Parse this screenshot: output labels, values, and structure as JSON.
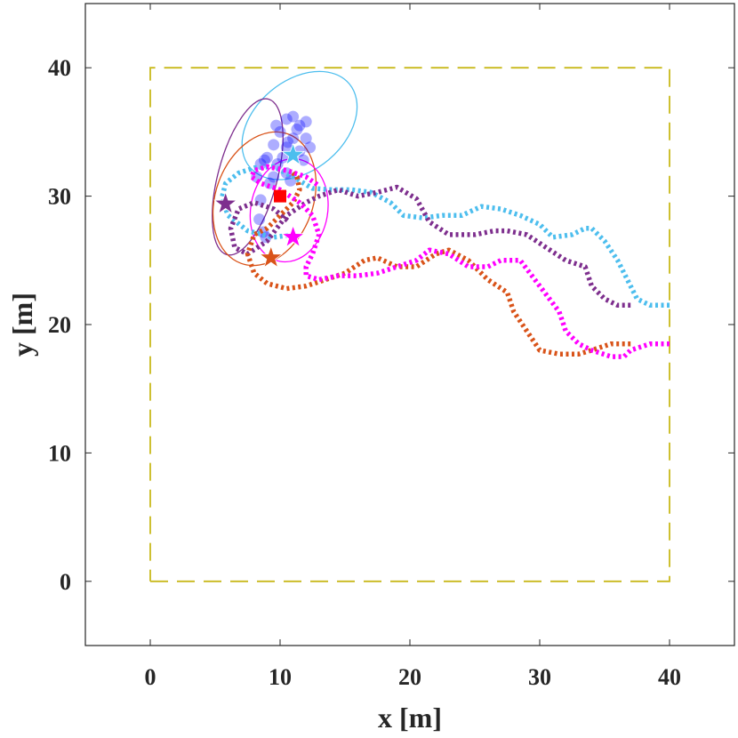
{
  "chart_data": {
    "type": "line",
    "title": "",
    "xlabel": "x [m]",
    "ylabel": "y [m]",
    "xlim": [
      -5,
      45
    ],
    "ylim": [
      -5,
      45
    ],
    "xticks": [
      0,
      10,
      20,
      30,
      40
    ],
    "yticks": [
      0,
      10,
      20,
      30,
      40
    ],
    "x_tick_labels": [
      "0",
      "10",
      "20",
      "30",
      "40"
    ],
    "y_tick_labels": [
      "0",
      "10",
      "20",
      "30",
      "40"
    ],
    "grid": false,
    "legend": "none",
    "boundary": {
      "x": [
        0,
        40,
        40,
        0,
        0
      ],
      "y": [
        0,
        0,
        40,
        40,
        0
      ],
      "color": "#c9b91b"
    },
    "target": {
      "x": 10,
      "y": 30,
      "color": "#ff0000"
    },
    "series": [
      {
        "color": "#4dbeee",
        "x": [
          40,
          38.5,
          37.5,
          37,
          36,
          35,
          34,
          33.5,
          32.5,
          31,
          30,
          28.5,
          27,
          25.5,
          24,
          22.5,
          21,
          19.5,
          18.5,
          17,
          15.5,
          14,
          12.5,
          11,
          9.5,
          8,
          6.8,
          5.8,
          5.5,
          6,
          7.5,
          9.5,
          11
        ],
        "y": [
          21.5,
          21.5,
          22,
          23,
          25,
          26.5,
          27.5,
          27.5,
          27,
          26.8,
          27.8,
          28.5,
          29,
          29.2,
          28.5,
          28.5,
          28.3,
          28.5,
          29.5,
          30.3,
          30.5,
          30.5,
          30.6,
          31.5,
          32.3,
          32.2,
          31.8,
          31,
          29.8,
          28.5,
          27.3,
          26.8,
          27
        ]
      },
      {
        "color": "#7e2f8e",
        "x": [
          37,
          36,
          35,
          34,
          33.5,
          32,
          30.5,
          29,
          27.5,
          26.5,
          25,
          23,
          21.5,
          20.5,
          19,
          17.5,
          16,
          14.5,
          13,
          12,
          10.5,
          9,
          7.5,
          6.5,
          6.2,
          6.8,
          8,
          9.5,
          10.7
        ],
        "y": [
          21.5,
          21.5,
          22,
          23,
          24.5,
          25,
          26,
          27,
          27.3,
          27.3,
          27,
          27,
          28,
          29.8,
          30.7,
          30.3,
          30,
          30.5,
          30,
          29.5,
          28.5,
          26.5,
          25.5,
          26,
          27.5,
          29,
          29.5,
          29,
          28
        ]
      },
      {
        "color": "#d95319",
        "x": [
          37,
          35.5,
          34,
          33,
          31.5,
          30,
          29,
          28,
          27.5,
          26,
          24.5,
          23,
          22,
          20.5,
          19,
          17.5,
          16.5,
          15,
          13.5,
          12,
          10.5,
          9,
          8,
          7.5,
          8,
          9,
          10,
          11,
          11.5,
          11.3,
          10.8
        ],
        "y": [
          18.5,
          18.5,
          18,
          17.7,
          17.7,
          18,
          19.5,
          21,
          22.5,
          23.5,
          25,
          25.8,
          25.5,
          24.5,
          24.5,
          25.2,
          25,
          24,
          23.5,
          23,
          22.8,
          23.2,
          24,
          25.5,
          27,
          27.5,
          28.5,
          29.5,
          30.5,
          31.5,
          32
        ]
      },
      {
        "color": "#ff00ff",
        "x": [
          40,
          38.5,
          37,
          36.5,
          35.5,
          34,
          33,
          32,
          31.5,
          30,
          28.5,
          27,
          26,
          24.5,
          23,
          21.5,
          20.5,
          19,
          17.5,
          16,
          14.5,
          13,
          12,
          12,
          12.5,
          13,
          12.5,
          11.5,
          10,
          8.5,
          7.8,
          8,
          9,
          10.5,
          12,
          13
        ],
        "y": [
          18.5,
          18.5,
          18,
          17.5,
          17.5,
          18,
          18.5,
          19.5,
          21,
          23,
          25,
          25,
          24.5,
          24.5,
          25.5,
          25.8,
          25,
          24.5,
          24,
          23.8,
          23.8,
          23.5,
          23.8,
          24.5,
          25.5,
          27,
          28.5,
          29.5,
          30.5,
          31,
          31.5,
          32,
          32.3,
          32,
          31.5,
          30.8
        ]
      }
    ],
    "uncertainty_ellipses": [
      {
        "color": "#4dbeee",
        "cx": 11.5,
        "cy": 35.5,
        "rx": 5,
        "ry": 3.5,
        "angle_deg": 40
      },
      {
        "color": "#7e2f8e",
        "cx": 7.5,
        "cy": 31.5,
        "rx": 6.2,
        "ry": 2.3,
        "angle_deg": 75
      },
      {
        "color": "#d95319",
        "cx": 8.8,
        "cy": 29.8,
        "rx": 5.3,
        "ry": 3.8,
        "angle_deg": 70
      },
      {
        "color": "#ff00ff",
        "cx": 10.7,
        "cy": 28.9,
        "rx": 4,
        "ry": 3,
        "angle_deg": 80
      }
    ],
    "star_markers": [
      {
        "color": "#4dbeee",
        "x": 11,
        "y": 33.2
      },
      {
        "color": "#7e2f8e",
        "x": 5.8,
        "y": 29.4
      },
      {
        "color": "#d95319",
        "x": 9.3,
        "y": 25.2
      },
      {
        "color": "#ff00ff",
        "x": 11,
        "y": 26.8
      }
    ],
    "particles": {
      "color": "#0000ff",
      "points": [
        [
          10.5,
          36
        ],
        [
          11.5,
          35.5
        ],
        [
          10,
          35
        ],
        [
          11,
          34.5
        ],
        [
          12,
          34.5
        ],
        [
          10.5,
          33.8
        ],
        [
          11.5,
          33.5
        ],
        [
          9.5,
          34
        ],
        [
          12,
          35.8
        ],
        [
          11,
          36.2
        ],
        [
          10.2,
          33
        ],
        [
          11.8,
          32.8
        ],
        [
          9.8,
          32.5
        ],
        [
          9,
          33
        ],
        [
          8.5,
          32.5
        ],
        [
          9.5,
          31.5
        ],
        [
          10.5,
          31.8
        ],
        [
          8.2,
          31.5
        ],
        [
          9.2,
          31
        ],
        [
          10.8,
          31.2
        ],
        [
          8.8,
          32.8
        ],
        [
          12.3,
          33.8
        ],
        [
          9.7,
          35.5
        ],
        [
          11.3,
          35.2
        ],
        [
          10.6,
          34.2
        ],
        [
          8.5,
          29.7
        ],
        [
          8.4,
          28.2
        ],
        [
          8.7,
          27.2
        ],
        [
          8.9,
          26.8
        ]
      ]
    }
  }
}
